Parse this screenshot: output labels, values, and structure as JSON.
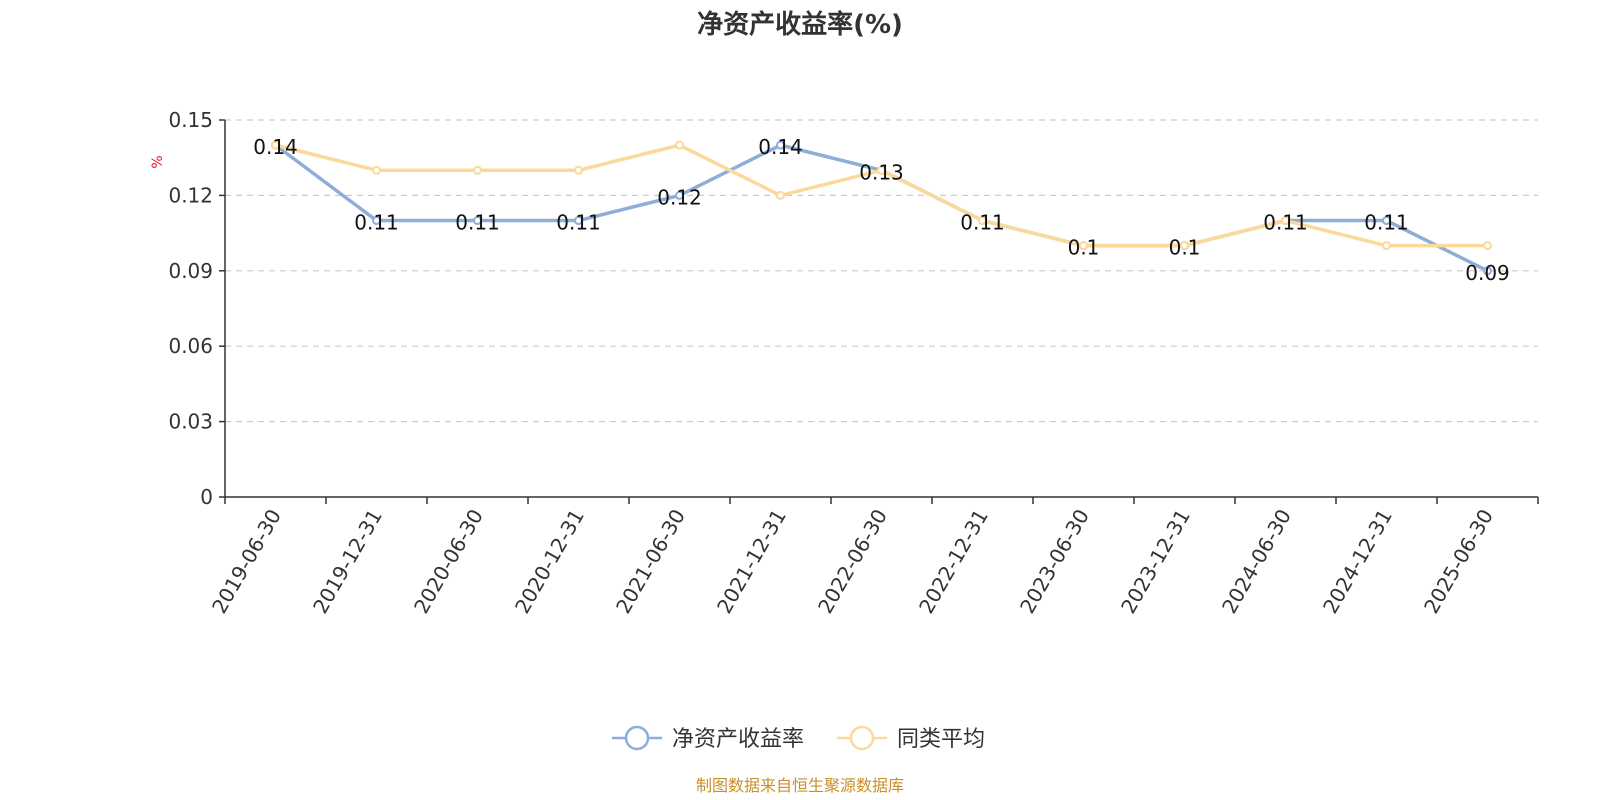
{
  "chart_data": {
    "type": "line",
    "title": "净资产收益率(%)",
    "ylabel": "%",
    "xlabel": "",
    "ylim": [
      0,
      0.15
    ],
    "yticks": [
      "0",
      "0.03",
      "0.06",
      "0.09",
      "0.12",
      "0.15"
    ],
    "ytick_values": [
      0,
      0.03,
      0.06,
      0.09,
      0.12,
      0.15
    ],
    "grid": true,
    "legend_position": "bottom",
    "categories": [
      "2019-06-30",
      "2019-12-31",
      "2020-06-30",
      "2020-12-31",
      "2021-06-30",
      "2021-12-31",
      "2022-06-30",
      "2022-12-31",
      "2023-06-30",
      "2023-12-31",
      "2024-06-30",
      "2024-12-31",
      "2025-06-30"
    ],
    "series": [
      {
        "name": "净资产收益率",
        "color": "#8eaed9",
        "values": [
          0.14,
          0.11,
          0.11,
          0.11,
          0.12,
          0.14,
          0.13,
          0.11,
          0.1,
          0.1,
          0.11,
          0.11,
          0.09
        ],
        "labels": [
          "0.14",
          "0.11",
          "0.11",
          "0.11",
          "0.12",
          "0.14",
          "0.13",
          "0.11",
          "0.1",
          "0.1",
          "0.11",
          "0.11",
          "0.09"
        ]
      },
      {
        "name": "同类平均",
        "color": "#fbd99b",
        "values": [
          0.14,
          0.13,
          0.13,
          0.13,
          0.14,
          0.12,
          0.13,
          0.11,
          0.1,
          0.1,
          0.11,
          0.1,
          0.1
        ]
      }
    ],
    "source": "制图数据来自恒生聚源数据库"
  }
}
